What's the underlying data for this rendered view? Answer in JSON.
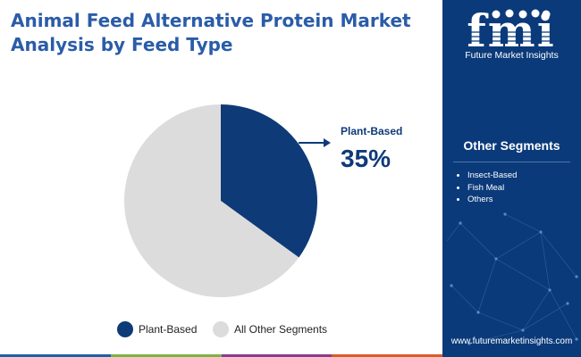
{
  "header": {
    "title": "Animal Feed Alternative Protein Market Analysis by Feed Type"
  },
  "brand": {
    "logo_letters": "fmi",
    "name": "Future Market Insights",
    "website": "www.futuremarketinsights.com"
  },
  "other_segments": {
    "title": "Other Segments",
    "items": [
      "Insect-Based",
      "Fish Meal",
      "Others"
    ]
  },
  "callout": {
    "label": "Plant-Based",
    "value": "35%"
  },
  "chart_data": {
    "type": "pie",
    "slices": [
      {
        "name": "Plant-Based",
        "value": 35,
        "color": "#0e3a78"
      },
      {
        "name": "All Other Segments",
        "value": 65,
        "color": "#dcdcdc"
      }
    ],
    "legend_position": "bottom"
  },
  "colors": {
    "primary": "#0e3a78",
    "title": "#2a5ca8",
    "panel": "#0a3a7a",
    "other": "#dcdcdc"
  },
  "bottom_bar_colors": [
    "#1f5fa6",
    "#7ab543",
    "#8b3a8f",
    "#d95a2b"
  ]
}
